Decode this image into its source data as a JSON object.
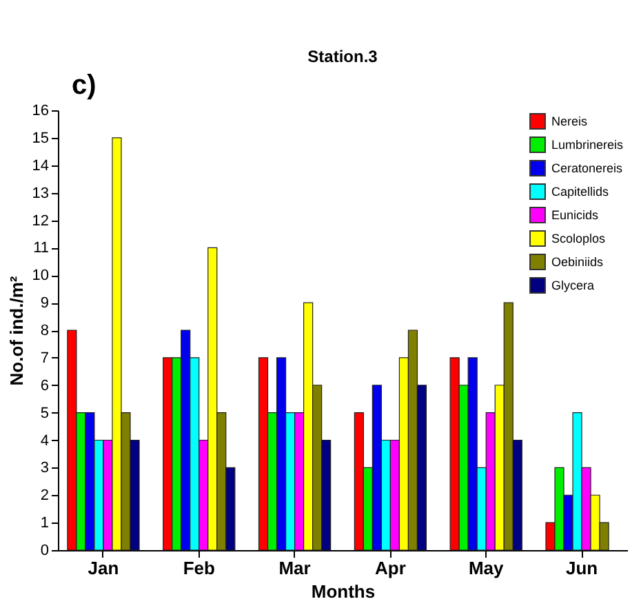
{
  "chart_data": {
    "type": "bar",
    "title": "Station.3",
    "xlabel": "Months",
    "ylabel": "No.of ind./m²",
    "annotations": [
      "c)"
    ],
    "categories": [
      "Jan",
      "Feb",
      "Mar",
      "Apr",
      "May",
      "Jun"
    ],
    "series": [
      {
        "name": "Nereis",
        "color": "#ff0000",
        "values": [
          8,
          7,
          7,
          5,
          7,
          1
        ]
      },
      {
        "name": "Lumbrinereis",
        "color": "#00ee00",
        "values": [
          5,
          7,
          5,
          3,
          6,
          3
        ]
      },
      {
        "name": "Ceratonereis",
        "color": "#0000ee",
        "values": [
          5,
          8,
          7,
          6,
          7,
          2
        ]
      },
      {
        "name": "Capitellids",
        "color": "#00ffff",
        "values": [
          4,
          7,
          5,
          4,
          3,
          5
        ]
      },
      {
        "name": "Eunicids",
        "color": "#ff00ff",
        "values": [
          4,
          4,
          5,
          4,
          5,
          3
        ]
      },
      {
        "name": "Scoloplos",
        "color": "#ffff00",
        "values": [
          15,
          11,
          9,
          7,
          6,
          2
        ]
      },
      {
        "name": "Oebiniids",
        "color": "#808000",
        "values": [
          5,
          5,
          6,
          8,
          9,
          1
        ]
      },
      {
        "name": "Glycera",
        "color": "#000080",
        "values": [
          4,
          3,
          4,
          6,
          4,
          null
        ]
      }
    ],
    "ylim": [
      0,
      16
    ],
    "yticks": [
      0,
      1,
      2,
      3,
      4,
      5,
      6,
      7,
      8,
      9,
      10,
      11,
      12,
      13,
      14,
      15,
      16
    ],
    "grid": false,
    "legend": "top right"
  }
}
